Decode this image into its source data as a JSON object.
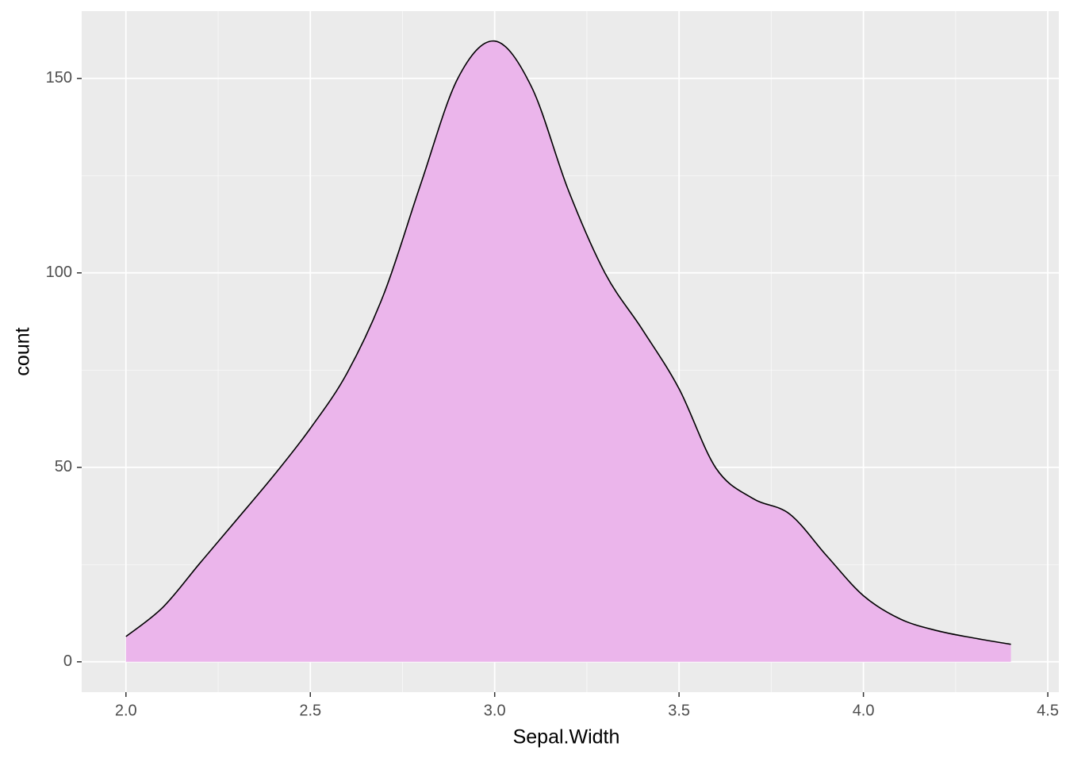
{
  "chart_data": {
    "type": "area",
    "x_label": "Sepal.Width",
    "y_label": "count",
    "x": [
      2.0,
      2.1,
      2.2,
      2.3,
      2.4,
      2.5,
      2.6,
      2.7,
      2.8,
      2.9,
      3.0,
      3.1,
      3.2,
      3.3,
      3.4,
      3.5,
      3.6,
      3.7,
      3.8,
      3.9,
      4.0,
      4.1,
      4.2,
      4.3,
      4.4
    ],
    "series": [
      {
        "color": "#ebb5eb",
        "values": [
          6.5,
          14,
          25.3,
          36.5,
          47.8,
          60,
          74.3,
          94.7,
          123,
          150,
          159.6,
          147.8,
          121.2,
          99.8,
          85.5,
          70.2,
          49.8,
          42,
          38,
          27.3,
          17,
          11,
          8,
          6.1,
          4.5
        ]
      }
    ],
    "xlim": [
      1.88,
      4.53
    ],
    "ylim": [
      -7.8,
      167.3
    ],
    "xticks": [
      {
        "value": 2.0,
        "label": "2.0"
      },
      2.5,
      {
        "value": 3.0,
        "label": "3.0"
      },
      3.5,
      {
        "value": 4.0,
        "label": "4.0"
      },
      4.5
    ],
    "yticks": [
      0,
      50,
      100,
      150
    ],
    "x_minor_grid": [
      2.25,
      2.75,
      3.25,
      3.75,
      4.25
    ],
    "y_minor_grid": [
      25,
      75,
      125
    ],
    "grid": true
  }
}
